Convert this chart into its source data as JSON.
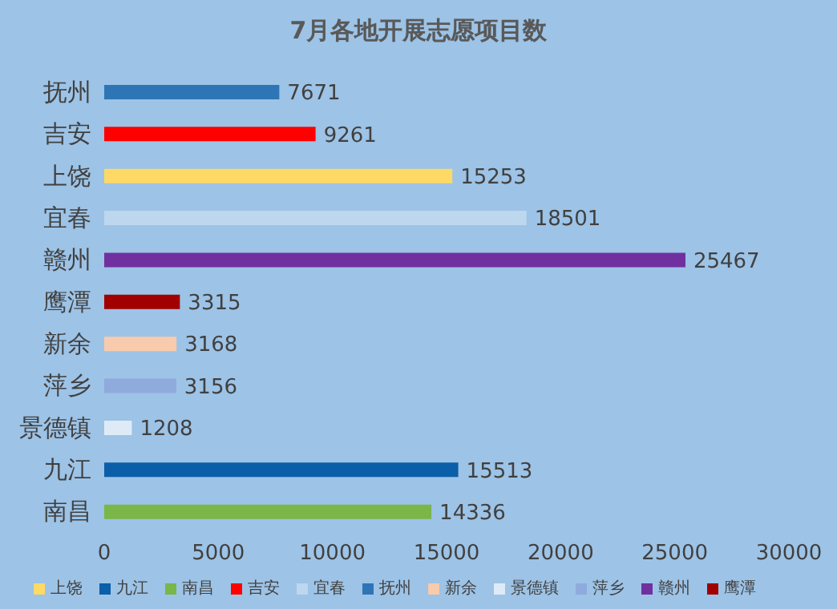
{
  "chart_data": {
    "type": "bar",
    "orientation": "horizontal",
    "stacked": true,
    "title": "7月各地开展志愿项目数",
    "categories": [
      "抚州",
      "吉安",
      "上饶",
      "宜春",
      "赣州",
      "鹰潭",
      "新余",
      "萍乡",
      "景德镇",
      "九江",
      "南昌"
    ],
    "series": [
      {
        "name": "南昌",
        "color": "#7ab648",
        "values": [
          null,
          null,
          null,
          null,
          null,
          null,
          null,
          null,
          null,
          null,
          14336
        ]
      },
      {
        "name": "九江",
        "color": "#0b5ea8",
        "values": [
          null,
          null,
          null,
          null,
          null,
          null,
          null,
          null,
          null,
          15513,
          null
        ]
      },
      {
        "name": "景德镇",
        "color": "#deebf7",
        "values": [
          null,
          null,
          null,
          null,
          null,
          null,
          null,
          null,
          1208,
          null,
          null
        ]
      },
      {
        "name": "萍乡",
        "color": "#8faadc",
        "values": [
          null,
          null,
          null,
          null,
          null,
          null,
          null,
          3156,
          null,
          null,
          null
        ]
      },
      {
        "name": "新余",
        "color": "#f8cbad",
        "values": [
          null,
          null,
          null,
          null,
          null,
          null,
          3168,
          null,
          null,
          null,
          null
        ]
      },
      {
        "name": "鹰潭",
        "color": "#a00000",
        "values": [
          null,
          null,
          null,
          null,
          null,
          3315,
          null,
          null,
          null,
          null,
          null
        ]
      },
      {
        "name": "赣州",
        "color": "#7030a0",
        "values": [
          null,
          null,
          null,
          null,
          25467,
          null,
          null,
          null,
          null,
          null,
          null
        ]
      },
      {
        "name": "宜春",
        "color": "#bdd7ee",
        "values": [
          null,
          null,
          null,
          18501,
          null,
          null,
          null,
          null,
          null,
          null,
          null
        ]
      },
      {
        "name": "上饶",
        "color": "#ffd966",
        "values": [
          null,
          null,
          15253,
          null,
          null,
          null,
          null,
          null,
          null,
          null,
          null
        ]
      },
      {
        "name": "吉安",
        "color": "#ff0000",
        "values": [
          null,
          9261,
          null,
          null,
          null,
          null,
          null,
          null,
          null,
          null,
          null
        ]
      },
      {
        "name": "抚州",
        "color": "#2e75b6",
        "values": [
          7671,
          null,
          null,
          null,
          null,
          null,
          null,
          null,
          null,
          null,
          null
        ]
      }
    ],
    "xlim": [
      0,
      30000
    ],
    "xticks": [
      0,
      5000,
      10000,
      15000,
      20000,
      25000,
      30000
    ],
    "data_labels": true,
    "grid": false,
    "legend": "bottom"
  }
}
